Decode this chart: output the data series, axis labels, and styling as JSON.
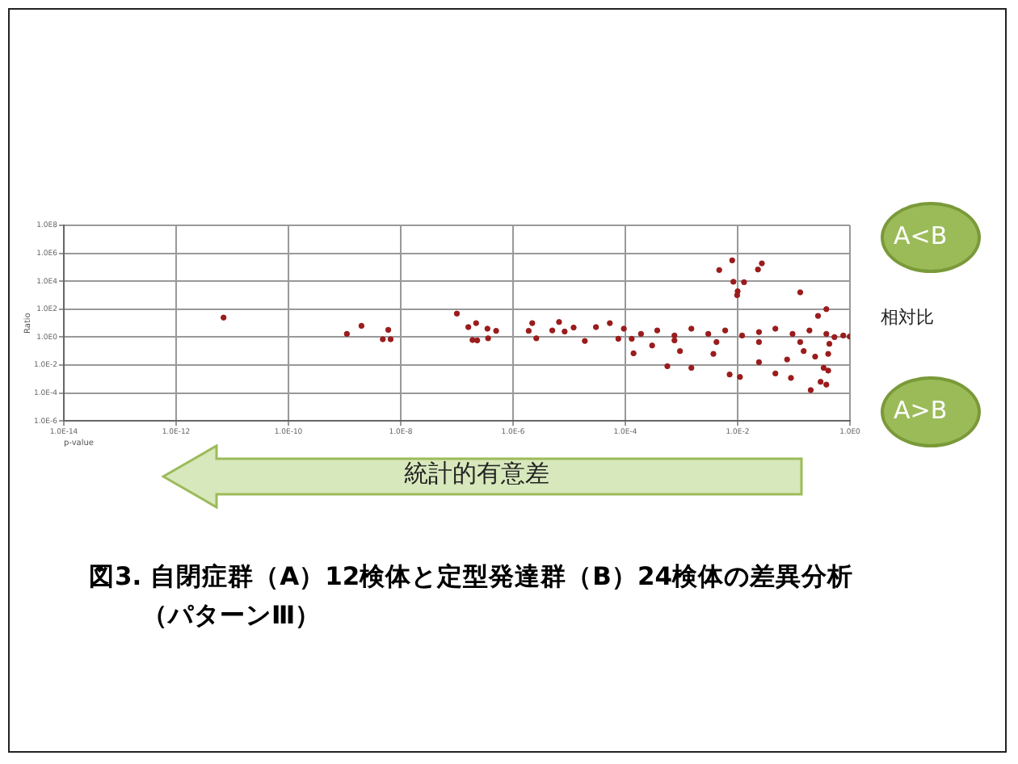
{
  "chart_data": {
    "type": "scatter",
    "title": "図3. 自閉症群（A）12検体と定型発達群（B）24検体の差異分析（パターンⅢ）",
    "xlabel": "p-value",
    "ylabel": "Ratio",
    "log": "xy",
    "grid": true,
    "marker": "circle",
    "legend": false,
    "xlim": [
      1e-14,
      1
    ],
    "ylim": [
      1e-06,
      100000000.0
    ],
    "xticks": [
      {
        "value": 1e-14,
        "label": "1.0E-14"
      },
      {
        "value": 1e-12,
        "label": "1.0E-12"
      },
      {
        "value": 1e-10,
        "label": "1.0E-10"
      },
      {
        "value": 1e-08,
        "label": "1.0E-8"
      },
      {
        "value": 1e-06,
        "label": "1.0E-6"
      },
      {
        "value": 0.0001,
        "label": "1.0E-4"
      },
      {
        "value": 0.01,
        "label": "1.0E-2"
      },
      {
        "value": 1,
        "label": "1.0E0"
      }
    ],
    "yticks": [
      {
        "value": 1e-06,
        "label": "1.0E-6"
      },
      {
        "value": 0.0001,
        "label": "1.0E-4"
      },
      {
        "value": 0.01,
        "label": "1.0E-2"
      },
      {
        "value": 1,
        "label": "1.0E0"
      },
      {
        "value": 100,
        "label": "1.0E2"
      },
      {
        "value": 10000,
        "label": "1.0E4"
      },
      {
        "value": 1000000,
        "label": "1.0E6"
      },
      {
        "value": 100000000,
        "label": "1.0E8"
      }
    ],
    "annotations": [
      "A<B",
      "相対比",
      "A>B",
      "統計的有意差"
    ],
    "series": [
      {
        "color": "#9b1c1c",
        "x": [
          7e-12,
          1.1e-09,
          2e-09,
          6e-09,
          4.8e-09,
          6.6e-09,
          1e-07,
          1.6e-07,
          2.2e-07,
          1.9e-07,
          2.3e-07,
          3.5e-07,
          5e-07,
          3.6e-07,
          1.9e-06,
          2.2e-06,
          2.6e-06,
          5e-06,
          6.6e-06,
          8.3e-06,
          1.2e-05,
          1.9e-05,
          3e-05,
          5.3e-05,
          7.5e-05,
          0.0047,
          0.008,
          0.023,
          0.027,
          0.0084,
          0.013,
          0.01,
          0.0098,
          0.13,
          0.38,
          0.27,
          0.00014,
          0.00056,
          0.0015,
          0.0072,
          0.011,
          0.047,
          0.089,
          0.2,
          0.3,
          0.38,
          0.024,
          0.076,
          0.0037,
          0.00094,
          0.0003,
          0.24,
          0.34,
          0.15,
          9.4e-05,
          0.00019,
          0.00037,
          0.00075,
          0.0015,
          0.003,
          0.006,
          0.012,
          0.024,
          0.047,
          0.095,
          0.19,
          0.38,
          0.53,
          0.76,
          0.99,
          0.00013,
          0.00075,
          0.0042,
          0.024,
          0.13,
          0.43,
          0.41,
          0.41
        ],
        "values": [
          25,
          1.7,
          6.4,
          3.3,
          0.7,
          0.7,
          48,
          5.2,
          10,
          0.62,
          0.58,
          4.0,
          2.8,
          0.82,
          2.8,
          10,
          0.82,
          3.0,
          12,
          2.5,
          4.8,
          0.53,
          5.2,
          10,
          0.76,
          63000,
          310000,
          69000,
          190000,
          9100,
          8500,
          1900,
          1000,
          1600,
          100,
          33,
          0.069,
          0.0083,
          0.0063,
          0.0021,
          0.0014,
          0.0025,
          0.0012,
          0.00016,
          0.00063,
          0.0004,
          0.016,
          0.025,
          0.063,
          0.1,
          0.25,
          0.04,
          0.0063,
          0.1,
          4.0,
          1.7,
          3.0,
          1.3,
          4.0,
          1.7,
          3.0,
          1.3,
          2.3,
          4.0,
          1.7,
          3.0,
          1.7,
          1.0,
          1.3,
          1.1,
          0.76,
          0.58,
          0.44,
          0.44,
          0.44,
          0.33,
          0.063,
          0.004
        ]
      }
    ]
  }
}
